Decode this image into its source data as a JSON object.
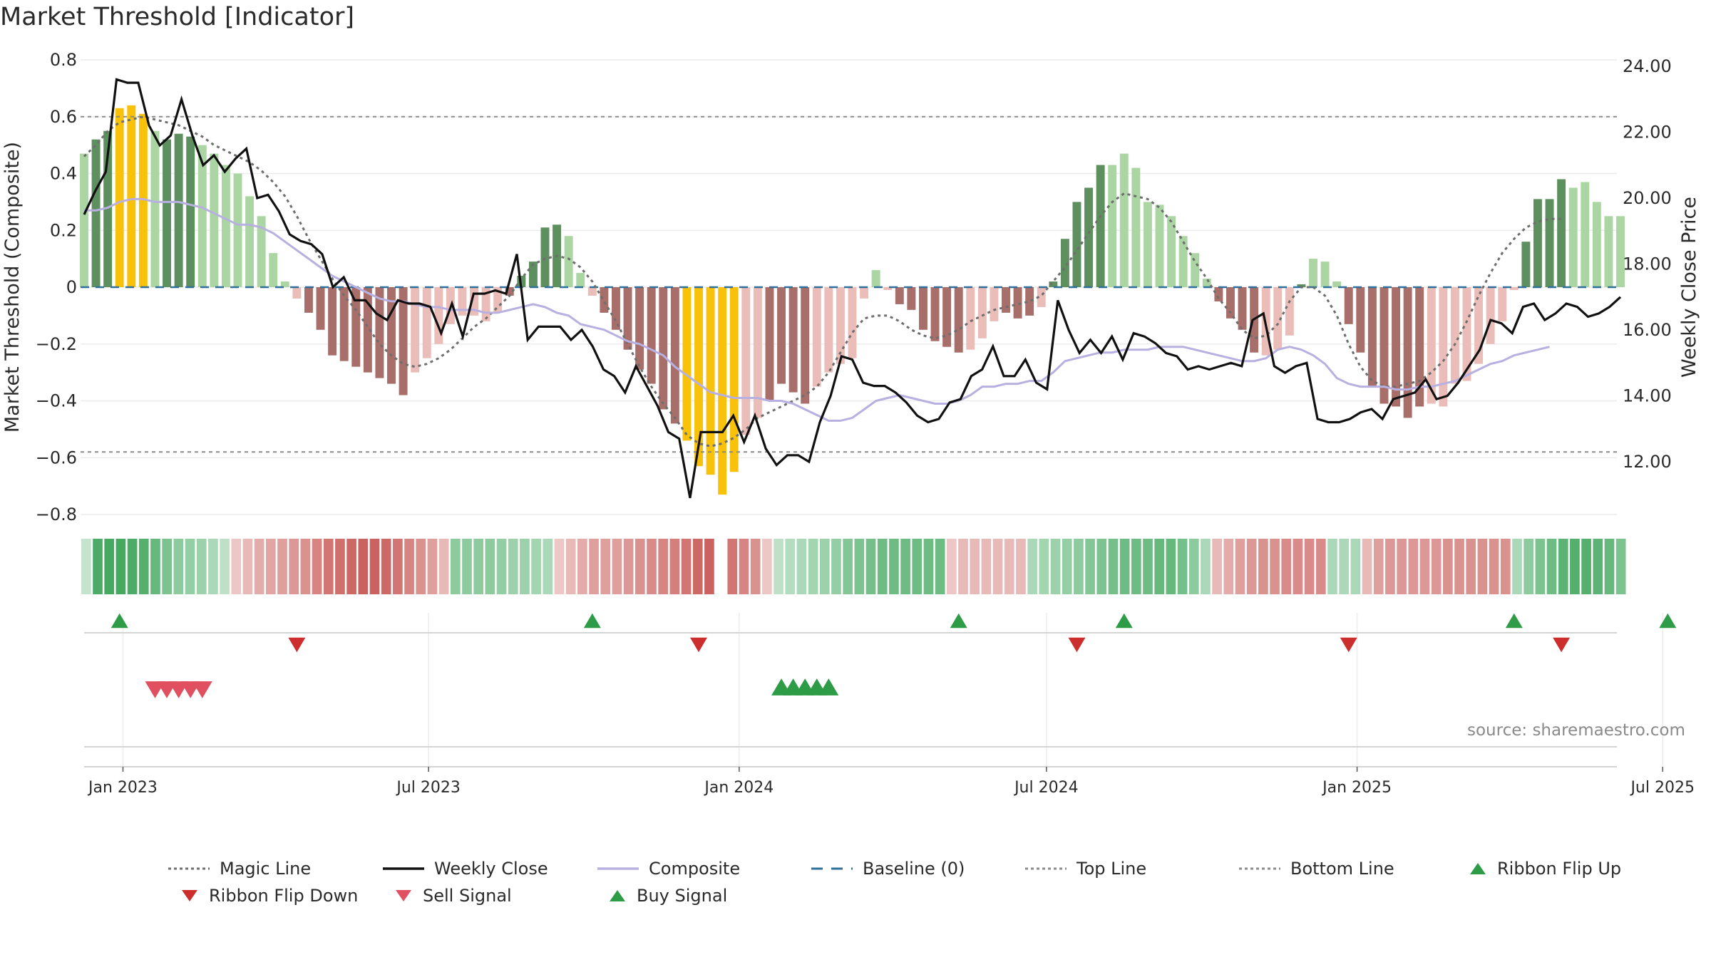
{
  "title": "Market Threshold [Indicator]",
  "source": "source: sharemaestro.com",
  "legend": {
    "items": [
      {
        "label": "Magic Line",
        "icon": "dotted-line-icon",
        "color": "#6e6e6e"
      },
      {
        "label": "Weekly Close",
        "icon": "solid-line-icon",
        "color": "#111111"
      },
      {
        "label": "Composite",
        "icon": "solid-line-icon",
        "color": "#b7b0e0"
      },
      {
        "label": "Baseline (0)",
        "icon": "dashed-line-icon",
        "color": "#2f6f9a"
      },
      {
        "label": "Top Line",
        "icon": "dotted-line-icon",
        "color": "#8a8a8a"
      },
      {
        "label": "Bottom Line",
        "icon": "dotted-line-icon",
        "color": "#8a8a8a"
      },
      {
        "label": "Ribbon Flip Up",
        "icon": "triangle-up-icon",
        "color": "#2e9c46"
      },
      {
        "label": "Ribbon Flip Down",
        "icon": "triangle-down-icon",
        "color": "#cc2e2e"
      },
      {
        "label": "Sell Signal",
        "icon": "triangle-down-icon",
        "color": "#e05060"
      },
      {
        "label": "Buy Signal",
        "icon": "triangle-up-icon",
        "color": "#2e9c46"
      }
    ]
  },
  "colors": {
    "up_strong": "#5e8f5e",
    "up_light": "#abd6a4",
    "down_strong": "#a86e6a",
    "down_light": "#ebbdb8",
    "extreme": "#f8c20a",
    "ribbon_green": "#3da55a",
    "ribbon_red": "#c85c58"
  },
  "chart_data": {
    "type": "bar",
    "x_ticks": [
      "Jan 2023",
      "Jul 2023",
      "Jan 2024",
      "Jul 2024",
      "Jan 2025",
      "Jul 2025"
    ],
    "left_axis": {
      "label": "Market Threshold (Composite)",
      "ticks": [
        "0.8",
        "0.6",
        "0.4",
        "0.2",
        "0",
        "−0.2",
        "−0.4",
        "−0.6",
        "−0.8"
      ],
      "ylim": [
        -0.8,
        0.8
      ]
    },
    "right_axis": {
      "label": "Weekly Close Price",
      "ticks": [
        "24.00",
        "22.00",
        "20.00",
        "18.00",
        "16.00",
        "14.00",
        "12.00"
      ],
      "ylim": [
        10.3,
        24.3
      ]
    },
    "top_line": 0.6,
    "bottom_line": -0.58,
    "x_start_index": -3,
    "composite_bars": [
      0.47,
      0.52,
      0.55,
      0.63,
      0.64,
      0.61,
      0.55,
      0.52,
      0.54,
      0.53,
      0.5,
      0.47,
      0.43,
      0.4,
      0.32,
      0.25,
      0.12,
      0.02,
      -0.04,
      -0.09,
      -0.15,
      -0.24,
      -0.26,
      -0.28,
      -0.3,
      -0.32,
      -0.34,
      -0.38,
      -0.3,
      -0.25,
      -0.2,
      -0.13,
      -0.1,
      -0.1,
      -0.12,
      -0.09,
      -0.03,
      0.04,
      0.09,
      0.21,
      0.22,
      0.18,
      0.05,
      -0.03,
      -0.09,
      -0.15,
      -0.22,
      -0.29,
      -0.34,
      -0.43,
      -0.48,
      -0.54,
      -0.63,
      -0.66,
      -0.73,
      -0.65,
      -0.52,
      -0.46,
      -0.4,
      -0.34,
      -0.37,
      -0.41,
      -0.35,
      -0.3,
      -0.27,
      -0.25,
      -0.04,
      0.06,
      -0.01,
      -0.06,
      -0.08,
      -0.15,
      -0.19,
      -0.21,
      -0.23,
      -0.22,
      -0.18,
      -0.12,
      -0.09,
      -0.11,
      -0.1,
      -0.07,
      0.02,
      0.17,
      0.3,
      0.35,
      0.43,
      0.43,
      0.47,
      0.42,
      0.3,
      0.29,
      0.25,
      0.18,
      0.12,
      0.03,
      -0.05,
      -0.11,
      -0.15,
      -0.23,
      -0.24,
      -0.22,
      -0.17,
      0.01,
      0.1,
      0.09,
      0.02,
      -0.13,
      -0.23,
      -0.35,
      -0.41,
      -0.42,
      -0.46,
      -0.42,
      -0.41,
      -0.42,
      -0.34,
      -0.33,
      -0.27,
      -0.2,
      -0.12,
      -0.01,
      0.16,
      0.31,
      0.31,
      0.38,
      0.35,
      0.37,
      0.3,
      0.25,
      0.25
    ],
    "bar_strength": [
      0,
      1,
      1,
      2,
      2,
      2,
      0,
      1,
      1,
      1,
      0,
      0,
      0,
      0,
      0,
      0,
      0,
      0,
      0,
      1,
      1,
      1,
      1,
      1,
      1,
      1,
      1,
      1,
      0,
      0,
      0,
      0,
      0,
      0,
      0,
      0,
      1,
      1,
      1,
      1,
      1,
      0,
      0,
      0,
      1,
      1,
      1,
      1,
      1,
      1,
      1,
      2,
      2,
      2,
      2,
      2,
      0,
      0,
      1,
      1,
      1,
      1,
      0,
      0,
      0,
      0,
      0,
      0,
      0,
      1,
      1,
      1,
      1,
      1,
      1,
      0,
      0,
      0,
      1,
      1,
      1,
      0,
      1,
      1,
      1,
      1,
      1,
      0,
      0,
      0,
      0,
      0,
      0,
      0,
      0,
      0,
      1,
      1,
      1,
      1,
      0,
      0,
      0,
      1,
      0,
      0,
      0,
      1,
      1,
      1,
      1,
      1,
      1,
      1,
      0,
      0,
      0,
      0,
      0,
      0,
      0,
      0,
      1,
      1,
      1,
      1,
      0,
      0,
      0
    ],
    "weekly_close": [
      19.5,
      20.2,
      20.8,
      23.6,
      23.5,
      23.5,
      22.2,
      21.6,
      21.9,
      23.0,
      21.9,
      21.0,
      21.3,
      20.8,
      21.2,
      21.5,
      20.0,
      20.1,
      19.6,
      18.9,
      18.7,
      18.6,
      18.3,
      17.3,
      17.6,
      16.9,
      16.9,
      16.5,
      16.3,
      16.9,
      16.8,
      16.8,
      16.7,
      15.9,
      16.8,
      15.8,
      17.1,
      17.1,
      17.2,
      17.1,
      18.3,
      15.7,
      16.1,
      16.1,
      16.1,
      15.7,
      16.0,
      15.5,
      14.8,
      14.6,
      14.1,
      14.9,
      14.3,
      13.7,
      12.9,
      12.7,
      10.9,
      12.9,
      12.9,
      12.9,
      13.4,
      12.6,
      13.4,
      12.4,
      11.9,
      12.2,
      12.2,
      12.0,
      13.2,
      14.0,
      15.2,
      15.1,
      14.4,
      14.3,
      14.3,
      14.1,
      13.8,
      13.4,
      13.2,
      13.3,
      13.8,
      13.9,
      14.6,
      14.8,
      15.5,
      14.6,
      14.6,
      15.1,
      14.4,
      14.2,
      16.9,
      16.0,
      15.3,
      15.7,
      15.3,
      15.8,
      15.1,
      15.9,
      15.8,
      15.6,
      15.3,
      15.2,
      14.8,
      14.9,
      14.8,
      14.9,
      15.0,
      14.9,
      16.3,
      16.5,
      14.9,
      14.7,
      14.9,
      15.0,
      13.3,
      13.2,
      13.2,
      13.3,
      13.5,
      13.6,
      13.3,
      13.9,
      14.0,
      14.1,
      14.5,
      13.9,
      14.0,
      14.4,
      14.9,
      15.4,
      16.3,
      16.2,
      15.9,
      16.7,
      16.8,
      16.3,
      16.5,
      16.8,
      16.7,
      16.4,
      16.5,
      16.7,
      17.0
    ],
    "composite_line": [
      0.27,
      0.27,
      0.28,
      0.3,
      0.31,
      0.31,
      0.3,
      0.3,
      0.3,
      0.29,
      0.28,
      0.26,
      0.24,
      0.22,
      0.22,
      0.21,
      0.19,
      0.16,
      0.13,
      0.1,
      0.07,
      0.04,
      0.02,
      0.0,
      -0.02,
      -0.04,
      -0.05,
      -0.05,
      -0.06,
      -0.07,
      -0.07,
      -0.08,
      -0.08,
      -0.08,
      -0.09,
      -0.09,
      -0.08,
      -0.07,
      -0.06,
      -0.07,
      -0.09,
      -0.1,
      -0.13,
      -0.14,
      -0.15,
      -0.17,
      -0.19,
      -0.2,
      -0.22,
      -0.24,
      -0.28,
      -0.31,
      -0.34,
      -0.37,
      -0.38,
      -0.39,
      -0.39,
      -0.39,
      -0.4,
      -0.4,
      -0.41,
      -0.43,
      -0.45,
      -0.47,
      -0.47,
      -0.46,
      -0.43,
      -0.4,
      -0.39,
      -0.38,
      -0.39,
      -0.4,
      -0.41,
      -0.41,
      -0.4,
      -0.38,
      -0.35,
      -0.35,
      -0.34,
      -0.34,
      -0.33,
      -0.33,
      -0.3,
      -0.26,
      -0.25,
      -0.24,
      -0.23,
      -0.23,
      -0.22,
      -0.22,
      -0.22,
      -0.21,
      -0.21,
      -0.21,
      -0.22,
      -0.23,
      -0.24,
      -0.25,
      -0.26,
      -0.26,
      -0.25,
      -0.22,
      -0.21,
      -0.22,
      -0.24,
      -0.27,
      -0.32,
      -0.34,
      -0.35,
      -0.35,
      -0.35,
      -0.36,
      -0.36,
      -0.35,
      -0.35,
      -0.34,
      -0.33,
      -0.31,
      -0.29,
      -0.27,
      -0.26,
      -0.24,
      -0.23,
      -0.22,
      -0.21
    ],
    "magic_line": [
      0.46,
      0.5,
      0.55,
      0.58,
      0.59,
      0.6,
      0.59,
      0.58,
      0.57,
      0.55,
      0.53,
      0.5,
      0.48,
      0.46,
      0.44,
      0.41,
      0.37,
      0.32,
      0.25,
      0.17,
      0.1,
      0.03,
      -0.03,
      -0.08,
      -0.14,
      -0.2,
      -0.24,
      -0.27,
      -0.28,
      -0.27,
      -0.25,
      -0.22,
      -0.18,
      -0.14,
      -0.11,
      -0.07,
      -0.03,
      0.03,
      0.08,
      0.1,
      0.11,
      0.1,
      0.07,
      0.02,
      -0.05,
      -0.12,
      -0.2,
      -0.28,
      -0.35,
      -0.41,
      -0.46,
      -0.52,
      -0.55,
      -0.56,
      -0.55,
      -0.53,
      -0.5,
      -0.46,
      -0.44,
      -0.42,
      -0.4,
      -0.38,
      -0.35,
      -0.3,
      -0.23,
      -0.16,
      -0.11,
      -0.1,
      -0.1,
      -0.12,
      -0.15,
      -0.17,
      -0.18,
      -0.17,
      -0.15,
      -0.12,
      -0.1,
      -0.08,
      -0.07,
      -0.06,
      -0.05,
      -0.03,
      0.02,
      0.07,
      0.13,
      0.19,
      0.25,
      0.3,
      0.33,
      0.32,
      0.31,
      0.28,
      0.23,
      0.16,
      0.09,
      0.03,
      -0.04,
      -0.09,
      -0.15,
      -0.18,
      -0.17,
      -0.13,
      -0.05,
      0.0,
      0.0,
      -0.03,
      -0.1,
      -0.2,
      -0.28,
      -0.33,
      -0.35,
      -0.35,
      -0.34,
      -0.33,
      -0.3,
      -0.26,
      -0.2,
      -0.12,
      -0.03,
      0.05,
      0.12,
      0.17,
      0.21,
      0.23,
      0.24,
      0.24
    ],
    "ribbon": [
      0.15,
      0.9,
      0.95,
      0.95,
      0.9,
      0.85,
      0.75,
      0.6,
      0.5,
      0.45,
      0.4,
      0.3,
      0.2,
      -0.2,
      -0.3,
      -0.4,
      -0.45,
      -0.5,
      -0.55,
      -0.6,
      -0.7,
      -0.8,
      -0.85,
      -0.9,
      -0.95,
      -0.95,
      -0.9,
      -0.8,
      -0.7,
      -0.6,
      -0.5,
      -0.3,
      0.5,
      0.5,
      0.5,
      0.5,
      0.45,
      0.4,
      0.4,
      0.35,
      0.3,
      -0.2,
      -0.3,
      -0.4,
      -0.5,
      -0.5,
      -0.5,
      -0.55,
      -0.6,
      -0.65,
      -0.7,
      -0.75,
      -0.8,
      -0.9,
      -0.95,
      null,
      -0.8,
      -0.7,
      -0.6,
      -0.2,
      0.2,
      0.25,
      0.3,
      0.35,
      0.4,
      0.45,
      0.55,
      0.6,
      0.65,
      0.7,
      0.7,
      0.7,
      0.7,
      0.7,
      0.7,
      -0.2,
      -0.3,
      -0.3,
      -0.3,
      -0.3,
      -0.3,
      -0.3,
      0.3,
      0.35,
      0.4,
      0.45,
      0.5,
      0.55,
      0.6,
      0.65,
      0.7,
      0.7,
      0.7,
      0.75,
      0.75,
      0.65,
      0.5,
      0.3,
      -0.3,
      -0.4,
      -0.5,
      -0.55,
      -0.6,
      -0.6,
      -0.65,
      -0.65,
      -0.65,
      -0.65,
      0.3,
      0.3,
      0.3,
      -0.3,
      -0.5,
      -0.55,
      -0.55,
      -0.55,
      -0.55,
      -0.55,
      -0.6,
      -0.6,
      -0.6,
      -0.6,
      -0.6,
      -0.6,
      0.3,
      0.5,
      0.6,
      0.7,
      0.8,
      0.85,
      0.85,
      0.8,
      0.75,
      0.6
    ],
    "ribbon_flip_up": [
      "Dec 30 2022",
      "Oct 6 2023",
      "May 10 2024",
      "Aug 16 2024",
      "Apr 4 2025",
      "Jul 4 2025"
    ],
    "ribbon_flip_down": [
      "Apr 14 2023",
      "Dec 8 2023",
      "Jul 19 2024",
      "Dec 27 2024",
      "May 2 2025"
    ],
    "sell_signals": [
      "Jan 20 2023",
      "Jan 27 2023",
      "Feb 3 2023",
      "Feb 10 2023",
      "Feb 17 2023"
    ],
    "buy_signals": [
      "Jan 26 2024",
      "Feb 2 2024",
      "Feb 9 2024",
      "Feb 16 2024",
      "Feb 23 2024"
    ]
  }
}
